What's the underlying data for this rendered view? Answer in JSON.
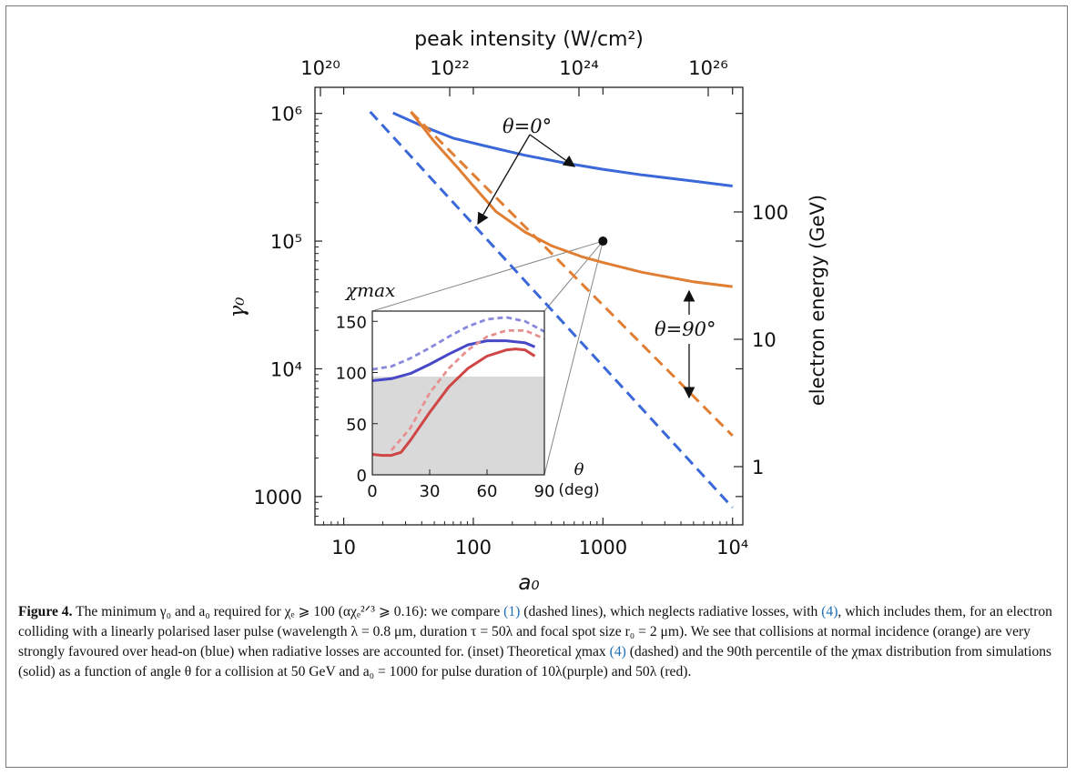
{
  "chart_data": {
    "type": "line",
    "x_scale": "log",
    "y_scale": "log",
    "xlabel": "a₀",
    "ylabel": "γ₀",
    "top_axis_label": "peak intensity (W/cm²)",
    "right_axis_label": "electron energy (GeV)",
    "xlim": [
      6,
      12000
    ],
    "ylim": [
      600,
      1600000
    ],
    "x_ticks": [
      10,
      100,
      1000,
      10000
    ],
    "x_tick_labels": [
      "10",
      "100",
      "1000",
      "10⁴"
    ],
    "y_ticks": [
      1000,
      10000,
      100000,
      1000000
    ],
    "y_tick_labels": [
      "1000",
      "10⁴",
      "10⁵",
      "10⁶"
    ],
    "top_ticks": [
      "10²⁰",
      "10²²",
      "10²⁴",
      "10²⁶"
    ],
    "right_ticks": [
      "1",
      "10",
      "100"
    ],
    "series": [
      {
        "color": "#3a68d8",
        "dash": false,
        "x": [
          24,
          40,
          70,
          120,
          250,
          500,
          1000,
          2000,
          5000,
          10000
        ],
        "y": [
          1010000,
          800000,
          640000,
          560000,
          470000,
          410000,
          365000,
          330000,
          295000,
          270000
        ]
      },
      {
        "color": "#e07f33",
        "dash": false,
        "x": [
          33,
          50,
          75,
          100,
          150,
          250,
          400,
          700,
          1000,
          2000,
          5000,
          10000
        ],
        "y": [
          1030000,
          600000,
          380000,
          270000,
          170000,
          118000,
          92000,
          75000,
          68000,
          57000,
          48000,
          44000
        ]
      },
      {
        "color": "#3a68d8",
        "dash": true,
        "x": [
          16,
          10000
        ],
        "y": [
          1030000,
          820
        ]
      },
      {
        "color": "#e07f33",
        "dash": true,
        "x": [
          33,
          10000
        ],
        "y": [
          1030000,
          3000
        ]
      }
    ],
    "annotations": [
      {
        "text": "θ=0°"
      },
      {
        "text": "θ=90°"
      }
    ],
    "marker": {
      "x": 1000,
      "y": 100000
    },
    "inset": {
      "type": "line",
      "ylabel": "χmax",
      "xlabel_line1": "θ",
      "xlabel_line2": "(deg)",
      "xlim": [
        0,
        90
      ],
      "ylim": [
        0,
        160
      ],
      "x_ticks": [
        0,
        30,
        60,
        90
      ],
      "y_ticks": [
        0,
        50,
        100,
        150
      ],
      "shaded_below": 96,
      "series": [
        {
          "color": "#4648c8",
          "dash": false,
          "x": [
            0,
            10,
            20,
            30,
            40,
            50,
            60,
            70,
            80,
            85
          ],
          "y": [
            92,
            94,
            99,
            108,
            118,
            127,
            131,
            131,
            129,
            125
          ]
        },
        {
          "color": "#d04545",
          "dash": false,
          "x": [
            0,
            5,
            10,
            15,
            20,
            30,
            40,
            50,
            60,
            70,
            75,
            80,
            85
          ],
          "y": [
            20,
            19,
            19,
            22,
            34,
            61,
            86,
            104,
            116,
            122,
            123,
            122,
            116
          ]
        },
        {
          "color": "#8888dd",
          "dash": true,
          "x": [
            0,
            10,
            20,
            30,
            40,
            50,
            60,
            70,
            80,
            90
          ],
          "y": [
            103,
            106,
            114,
            124,
            135,
            145,
            152,
            154,
            150,
            140
          ]
        },
        {
          "color": "#e89090",
          "dash": true,
          "x": [
            10,
            20,
            30,
            40,
            50,
            60,
            70,
            80,
            90
          ],
          "y": [
            24,
            46,
            80,
            104,
            122,
            135,
            141,
            141,
            133
          ]
        }
      ]
    }
  },
  "caption": {
    "lead": "Figure 4.",
    "body_1": "The minimum γ₀ and a₀ required for χₑ ⩾ 100 (αχₑ²ᐟ³ ⩾ 0.16): we compare",
    "ref_1": "(1)",
    "body_2": "(dashed lines), which neglects radiative losses, with",
    "ref_4": "(4)",
    "body_3": ", which includes them, for an electron colliding with a linearly polarised laser pulse (wavelength λ = 0.8 μm, duration τ = 50λ and focal spot size r₀ = 2 μm). We see that collisions at normal incidence (orange) are very strongly favoured over head-on (blue) when radiative losses are accounted for. (inset) Theoretical χmax",
    "ref_4b": "(4)",
    "body_4": "(dashed) and the 90th percentile of the χmax distribution from simulations (solid) as a function of angle θ for a collision at 50 GeV and a₀ = 1000 for pulse duration of 10λ(purple) and 50λ (red)."
  }
}
